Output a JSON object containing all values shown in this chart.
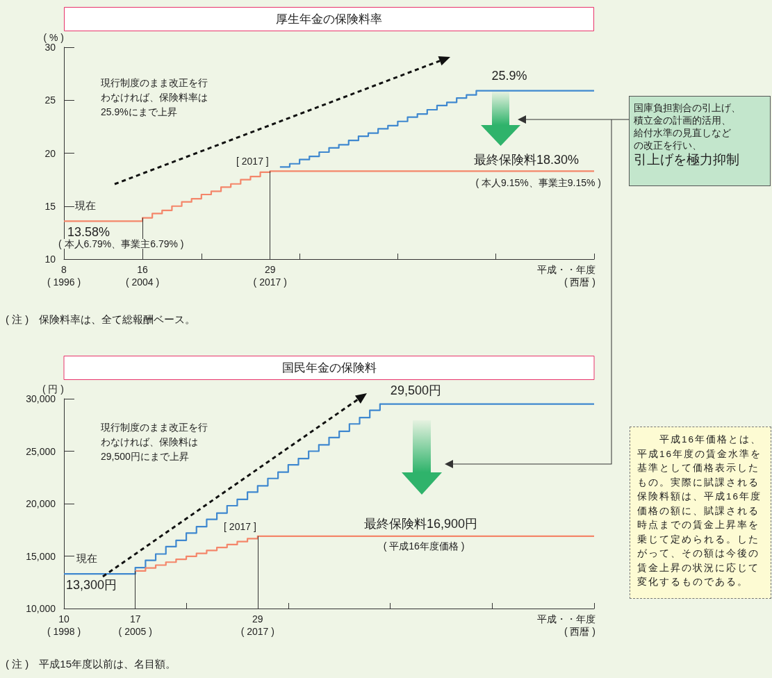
{
  "chart_data": [
    {
      "type": "step",
      "title": "厚生年金の保険料率",
      "ylabel": "( % )",
      "xlabel": "平成・・年度",
      "x2label": "( 西暦 )",
      "xlim": [
        8,
        62
      ],
      "xticks": [
        8,
        16,
        {
          "value": 22,
          "label": null
        },
        29,
        {
          "value": 32,
          "label": null
        },
        {
          "value": 42,
          "label": null
        },
        {
          "value": 52,
          "label": null
        },
        {
          "value": 62,
          "label": null
        }
      ],
      "x2lim": [
        1996,
        2050
      ],
      "x2ticks": [
        {
          "value": 1996,
          "label": "( 1996 )"
        },
        {
          "value": 2004,
          "label": "( 2004 )"
        },
        {
          "value": 2017,
          "label": "( 2017 )"
        }
      ],
      "ylim": [
        10,
        30
      ],
      "yticks": [
        10,
        15,
        20,
        25,
        30
      ],
      "series": [
        {
          "color": "#f4866a",
          "x": [
            8,
            16,
            17,
            18,
            19,
            20,
            21,
            22,
            23,
            24,
            25,
            26,
            27,
            28,
            29,
            62
          ],
          "values": [
            13.58,
            13.9,
            14.3,
            14.6,
            15.0,
            15.4,
            15.7,
            16.1,
            16.4,
            16.8,
            17.1,
            17.5,
            17.8,
            18.2,
            18.3,
            18.3
          ]
        },
        {
          "color": "#3f88cf",
          "x": [
            30,
            31,
            32,
            33,
            34,
            35,
            36,
            37,
            38,
            39,
            40,
            41,
            42,
            43,
            44,
            45,
            46,
            47,
            48,
            49,
            50,
            62
          ],
          "values": [
            18.7,
            19.0,
            19.4,
            19.7,
            20.1,
            20.5,
            20.8,
            21.2,
            21.6,
            21.9,
            22.3,
            22.6,
            23.0,
            23.4,
            23.7,
            24.1,
            24.5,
            24.8,
            25.2,
            25.5,
            25.9,
            25.9
          ]
        }
      ],
      "ref_lines": [
        {
          "axis": "x",
          "value": 16
        },
        {
          "axis": "x",
          "value": 29
        }
      ],
      "annotations": [
        "現行制度のまま改正を行",
        "わなければ、保険料率は",
        "25.9%にまで上昇",
        {
          "text": "25.9%",
          "x": 50,
          "y": 25.9
        },
        {
          "text": "最終保険料18.30%",
          "x": 62,
          "y": 18.3
        },
        "( 本人9.15%、事業主9.15% )",
        "現在",
        {
          "text": "13.58%",
          "x": 8,
          "y": 13.58
        },
        "( 本人6.79%、事業主6.79% )",
        {
          "text": "[ 2017 ]",
          "x": 29,
          "y": 18.3
        },
        "国庫負担割合の引上げ、",
        "積立金の計画的活用、",
        "給付水準の見直しなど",
        "の改正を行い、",
        "引上げを極力抑制",
        "( 注 )　保険料率は、全て総報酬ベース。"
      ]
    },
    {
      "type": "step",
      "title": "国民年金の保険料",
      "ylabel": "( 円 )",
      "xlabel": "平成・・年度",
      "x2label": "( 西暦 )",
      "xlim": [
        10,
        62
      ],
      "xticks": [
        10,
        17,
        {
          "value": 22,
          "label": null
        },
        29,
        {
          "value": 32,
          "label": null
        },
        {
          "value": 42,
          "label": null
        },
        {
          "value": 52,
          "label": null
        },
        {
          "value": 62,
          "label": null
        }
      ],
      "x2lim": [
        1998,
        2050
      ],
      "x2ticks": [
        {
          "value": 1998,
          "label": "( 1998 )"
        },
        {
          "value": 2005,
          "label": "( 2005 )"
        },
        {
          "value": 2017,
          "label": "( 2017 )"
        }
      ],
      "ylim": [
        10000,
        30000
      ],
      "yticks": [
        {
          "value": 10000,
          "label": "10,000"
        },
        {
          "value": 15000,
          "label": "15,000"
        },
        {
          "value": 20000,
          "label": "20,000"
        },
        {
          "value": 25000,
          "label": "25,000"
        },
        {
          "value": 30000,
          "label": "30,000"
        }
      ],
      "series": [
        {
          "color": "#f4866a",
          "x": [
            17,
            18,
            19,
            20,
            21,
            22,
            23,
            24,
            25,
            26,
            27,
            28,
            29,
            62
          ],
          "values": [
            13580,
            13860,
            14140,
            14420,
            14700,
            14980,
            15260,
            15540,
            15820,
            16100,
            16380,
            16660,
            16900,
            16900
          ]
        },
        {
          "color": "#3f88cf",
          "x": [
            10,
            17,
            18,
            19,
            20,
            21,
            22,
            23,
            24,
            25,
            26,
            27,
            28,
            29,
            30,
            31,
            32,
            33,
            34,
            35,
            36,
            37,
            38,
            39,
            40,
            41,
            62
          ],
          "values": [
            13300,
            13900,
            14600,
            15200,
            15900,
            16500,
            17200,
            17800,
            18500,
            19100,
            19800,
            20400,
            21100,
            21700,
            22400,
            23000,
            23700,
            24300,
            25000,
            25600,
            26300,
            26900,
            27600,
            28200,
            28900,
            29500,
            29500
          ]
        }
      ],
      "ref_lines": [
        {
          "axis": "x",
          "value": 17
        },
        {
          "axis": "x",
          "value": 29
        }
      ],
      "annotations": [
        "現行制度のまま改正を行",
        "わなければ、保険料は",
        "29,500円にまで上昇",
        {
          "text": "29,500円",
          "x": 41,
          "y": 29500
        },
        {
          "text": "最終保険料16,900円",
          "x": 45,
          "y": 16900
        },
        "( 平成16年度価格 )",
        "現在",
        {
          "text": "13,300円",
          "x": 10,
          "y": 13300
        },
        {
          "text": "[ 2017 ]",
          "x": 29,
          "y": 16900
        },
        "　　平成16年価格とは、",
        "平成16年度の賃金水準を",
        "基準として価格表示した",
        "もの。実際に賦課される",
        "保険料額は、平成16年度",
        "価格の額に、賦課される",
        "時点までの賃金上昇率を",
        "乗じて定められる。した",
        "がって、その額は今後の",
        "賃金上昇の状況に応じて",
        "変化するものである。",
        "( 注 )　平成15年度以前は、名目額。"
      ]
    }
  ]
}
